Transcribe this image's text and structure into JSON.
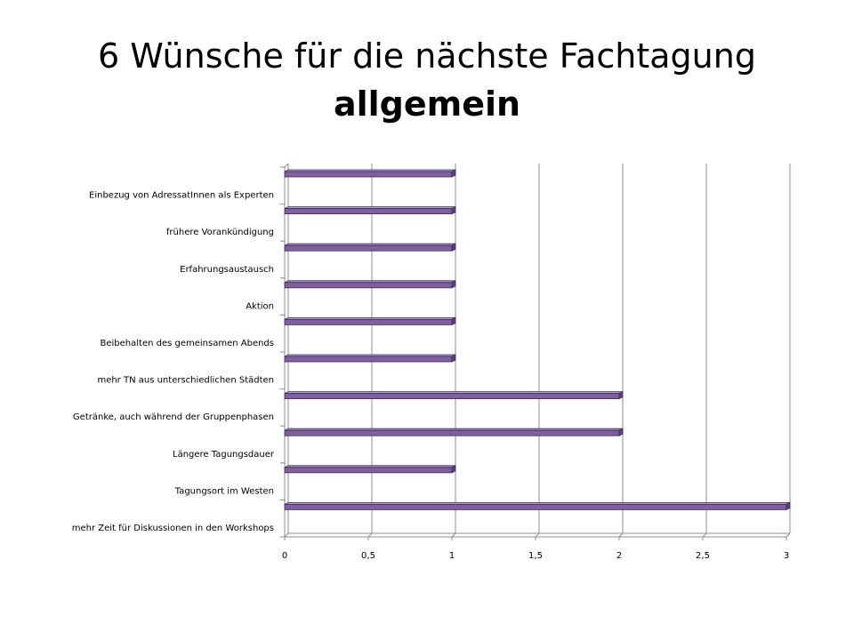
{
  "slide": {
    "title_line1": "6 Wünsche für die nächste Fachtagung",
    "title_line2": "allgemein"
  },
  "chart_data": {
    "type": "bar",
    "orientation": "horizontal",
    "categories": [
      "Einbezug von AdressatInnen als Experten",
      "frühere Vorankündigung",
      "Erfahrungsaustausch",
      "Aktion",
      "Beibehalten des gemeinsamen Abends",
      "mehr TN aus unterschiedlichen Städten",
      "Getränke, auch während der Gruppenphasen",
      "Längere Tagungsdauer",
      "Tagungsort im Westen",
      "mehr Zeit für Diskussionen in den Workshops"
    ],
    "values": [
      1,
      1,
      1,
      1,
      1,
      1,
      2,
      2,
      1,
      3
    ],
    "xlim": [
      0,
      3
    ],
    "xticks": [
      "0",
      "0,5",
      "1",
      "1,5",
      "2",
      "2,5",
      "3"
    ],
    "xtick_values": [
      0,
      0.5,
      1,
      1.5,
      2,
      2.5,
      3
    ],
    "grid": true,
    "bar_color": "#7f5f9f",
    "bar_edge_color": "#3d2a55",
    "legend": false
  }
}
